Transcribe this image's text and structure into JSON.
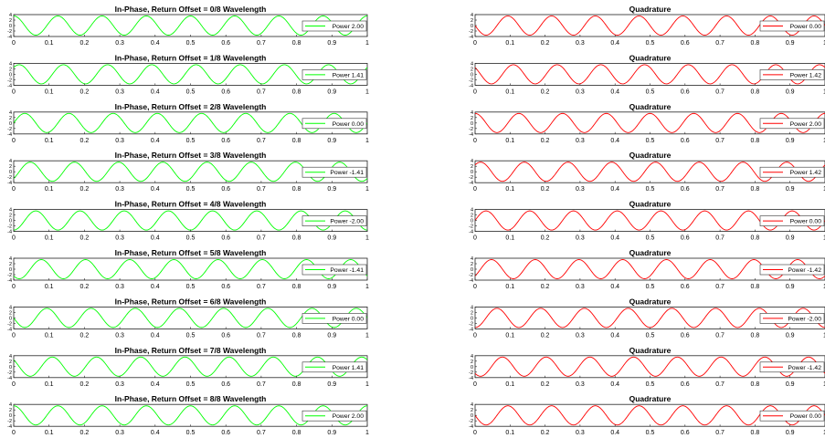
{
  "chart_data": {
    "type": "line",
    "x_ticks": [
      "0",
      "0.1",
      "0.2",
      "0.3",
      "0.4",
      "0.5",
      "0.6",
      "0.7",
      "0.8",
      "0.9",
      "1"
    ],
    "y_ticks": [
      "4",
      "2",
      "0",
      "-2",
      "-4"
    ],
    "xlim": [
      0,
      1
    ],
    "ylim": [
      -4,
      4
    ],
    "cycles": 8,
    "colors": {
      "in_phase": "#00ff00",
      "quadrature": "#ff0000"
    },
    "legend_position": "right",
    "in_phase": [
      {
        "title": "In-Phase, Return Offset = 0/8 Wavelength",
        "legend": "Power 2.00",
        "offset": 0
      },
      {
        "title": "In-Phase, Return Offset = 1/8 Wavelength",
        "legend": "Power 1.41",
        "offset": 0.125
      },
      {
        "title": "In-Phase, Return Offset = 2/8 Wavelength",
        "legend": "Power 0.00",
        "offset": 0.25
      },
      {
        "title": "In-Phase, Return Offset = 3/8 Wavelength",
        "legend": "Power -1.41",
        "offset": 0.375
      },
      {
        "title": "In-Phase, Return Offset = 4/8 Wavelength",
        "legend": "Power -2.00",
        "offset": 0.5
      },
      {
        "title": "In-Phase, Return Offset = 5/8 Wavelength",
        "legend": "Power -1.41",
        "offset": 0.625
      },
      {
        "title": "In-Phase, Return Offset = 6/8 Wavelength",
        "legend": "Power 0.00",
        "offset": 0.75
      },
      {
        "title": "In-Phase, Return Offset = 7/8 Wavelength",
        "legend": "Power 1.41",
        "offset": 0.875
      },
      {
        "title": "In-Phase, Return Offset = 8/8 Wavelength",
        "legend": "Power 2.00",
        "offset": 1
      }
    ],
    "quadrature": [
      {
        "title": "Quadrature",
        "legend": "Power 0.00",
        "offset": 0
      },
      {
        "title": "Quadrature",
        "legend": "Power 1.42",
        "offset": 0.125
      },
      {
        "title": "Quadrature",
        "legend": "Power 2.00",
        "offset": 0.25
      },
      {
        "title": "Quadrature",
        "legend": "Power 1.42",
        "offset": 0.375
      },
      {
        "title": "Quadrature",
        "legend": "Power 0.00",
        "offset": 0.5
      },
      {
        "title": "Quadrature",
        "legend": "Power -1.42",
        "offset": 0.625
      },
      {
        "title": "Quadrature",
        "legend": "Power -2.00",
        "offset": 0.75
      },
      {
        "title": "Quadrature",
        "legend": "Power -1.42",
        "offset": 0.875
      },
      {
        "title": "Quadrature",
        "legend": "Power 0.00",
        "offset": 1
      }
    ]
  }
}
